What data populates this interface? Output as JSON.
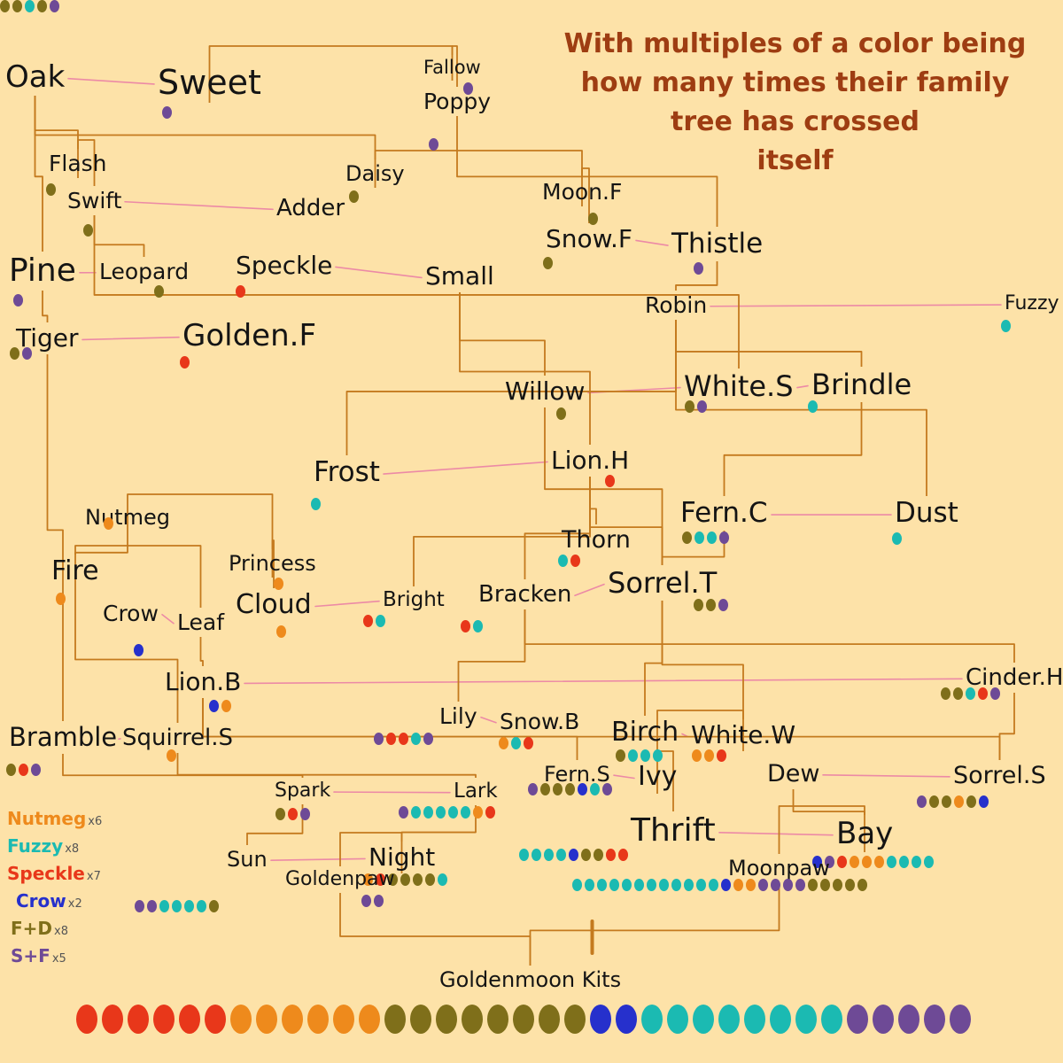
{
  "title": [
    "With multiples of a color being",
    "how many times their family",
    "tree has crossed",
    "itself"
  ],
  "colors": {
    "nutmeg": "#ee8a1c",
    "fuzzy": "#1bbab2",
    "speckle": "#e8371a",
    "crow": "#2630cc",
    "fd": "#7f6f1a",
    "sf": "#6e4a96",
    "name": "#141414",
    "tree_line": "#c47a1e",
    "mate_line": "#ec8aa6",
    "title": "#9e3d12",
    "background": "#fde2a8"
  },
  "legend": [
    {
      "name": "Nutmeg",
      "mult": "x6",
      "color": "nutmeg"
    },
    {
      "name": "Fuzzy",
      "mult": "x8",
      "color": "fuzzy"
    },
    {
      "name": "Speckle",
      "mult": "x7",
      "color": "speckle"
    },
    {
      "name": "Crow",
      "mult": "x2",
      "color": "crow"
    },
    {
      "name": "F+D",
      "mult": "x8",
      "color": "fd"
    },
    {
      "name": "S+F",
      "mult": "x5",
      "color": "sf"
    }
  ],
  "cats": [
    {
      "id": "oak",
      "name": "Oak",
      "dots": []
    },
    {
      "id": "sweet",
      "name": "Sweet",
      "dots": [
        "sf"
      ]
    },
    {
      "id": "fallow",
      "name": "Fallow",
      "dots": [
        "sf"
      ]
    },
    {
      "id": "poppy",
      "name": "Poppy",
      "dots": [
        "sf"
      ]
    },
    {
      "id": "flash",
      "name": "Flash",
      "dots": [
        "fd"
      ]
    },
    {
      "id": "daisy",
      "name": "Daisy",
      "dots": [
        "fd"
      ]
    },
    {
      "id": "swift",
      "name": "Swift",
      "dots": [
        "fd"
      ]
    },
    {
      "id": "adder",
      "name": "Adder",
      "dots": []
    },
    {
      "id": "moonf",
      "name": "Moon.F",
      "dots": [
        "fd"
      ]
    },
    {
      "id": "snowf",
      "name": "Snow.F",
      "dots": [
        "fd"
      ]
    },
    {
      "id": "thistle",
      "name": "Thistle",
      "dots": [
        "sf"
      ]
    },
    {
      "id": "pine",
      "name": "Pine",
      "dots": [
        "sf"
      ]
    },
    {
      "id": "leopard",
      "name": "Leopard",
      "dots": [
        "fd"
      ]
    },
    {
      "id": "speckle",
      "name": "Speckle",
      "dots": [
        "speckle"
      ]
    },
    {
      "id": "small",
      "name": "Small",
      "dots": []
    },
    {
      "id": "robin",
      "name": "Robin",
      "dots": []
    },
    {
      "id": "fuzzy",
      "name": "Fuzzy",
      "dots": [
        "fuzzy"
      ]
    },
    {
      "id": "tiger",
      "name": "Tiger",
      "dots": [
        "fd",
        "sf"
      ]
    },
    {
      "id": "goldenf",
      "name": "Golden.F",
      "dots": [
        "speckle"
      ]
    },
    {
      "id": "willow",
      "name": "Willow",
      "dots": [
        "fd"
      ]
    },
    {
      "id": "whites",
      "name": "White.S",
      "dots": [
        "fd",
        "sf"
      ]
    },
    {
      "id": "brindle",
      "name": "Brindle",
      "dots": [
        "fuzzy"
      ]
    },
    {
      "id": "frost",
      "name": "Frost",
      "dots": [
        "fuzzy"
      ]
    },
    {
      "id": "lionh",
      "name": "Lion.H",
      "dots": [
        "speckle"
      ]
    },
    {
      "id": "nutmeg",
      "name": "Nutmeg",
      "dots": [
        "nutmeg"
      ]
    },
    {
      "id": "fernc",
      "name": "Fern.C",
      "dots": [
        "fd",
        "fuzzy",
        "fuzzy",
        "sf"
      ]
    },
    {
      "id": "dust",
      "name": "Dust",
      "dots": [
        "fuzzy"
      ]
    },
    {
      "id": "thorn",
      "name": "Thorn",
      "dots": [
        "fuzzy",
        "speckle"
      ]
    },
    {
      "id": "fire",
      "name": "Fire",
      "dots": [
        "nutmeg"
      ]
    },
    {
      "id": "princess",
      "name": "Princess",
      "dots": [
        "nutmeg"
      ]
    },
    {
      "id": "cloud",
      "name": "Cloud",
      "dots": [
        "nutmeg"
      ]
    },
    {
      "id": "bright",
      "name": "Bright",
      "dots": [
        "speckle",
        "fuzzy"
      ]
    },
    {
      "id": "bracken",
      "name": "Bracken",
      "dots": [
        "speckle",
        "fuzzy"
      ]
    },
    {
      "id": "sorrelt",
      "name": "Sorrel.T",
      "dots": [
        "fd",
        "fd",
        "sf"
      ]
    },
    {
      "id": "crow",
      "name": "Crow",
      "dots": [
        "crow"
      ]
    },
    {
      "id": "leaf",
      "name": "Leaf",
      "dots": []
    },
    {
      "id": "lionb",
      "name": "Lion.B",
      "dots": [
        "crow",
        "nutmeg"
      ]
    },
    {
      "id": "cinderh",
      "name": "Cinder.H",
      "dots": [
        "fd",
        "fd",
        "fuzzy",
        "speckle",
        "sf"
      ]
    },
    {
      "id": "lily",
      "name": "Lily",
      "dots": [
        "sf",
        "speckle",
        "speckle",
        "fuzzy",
        "sf"
      ]
    },
    {
      "id": "snowb",
      "name": "Snow.B",
      "dots": [
        "nutmeg",
        "fuzzy",
        "speckle"
      ]
    },
    {
      "id": "birch",
      "name": "Birch",
      "dots": [
        "fd",
        "fuzzy",
        "fuzzy",
        "fuzzy"
      ]
    },
    {
      "id": "whitew",
      "name": "White.W",
      "dots": [
        "nutmeg",
        "nutmeg",
        "speckle"
      ]
    },
    {
      "id": "bramble",
      "name": "Bramble",
      "dots": [
        "fd",
        "speckle",
        "sf"
      ]
    },
    {
      "id": "squirrels",
      "name": "Squirrel.S",
      "dots": [
        "nutmeg"
      ]
    },
    {
      "id": "ferns",
      "name": "Fern.S",
      "dots": [
        "sf",
        "fd",
        "fd",
        "fd",
        "crow",
        "fuzzy",
        "sf"
      ]
    },
    {
      "id": "ivy",
      "name": "Ivy",
      "dots": [
        "fd",
        "fd",
        "fuzzy",
        "fd",
        "sf"
      ]
    },
    {
      "id": "dew",
      "name": "Dew",
      "dots": []
    },
    {
      "id": "sorrels",
      "name": "Sorrel.S",
      "dots": [
        "sf",
        "fd",
        "fd",
        "nutmeg",
        "fd",
        "crow"
      ]
    },
    {
      "id": "spark",
      "name": "Spark",
      "dots": [
        "fd",
        "speckle",
        "sf"
      ]
    },
    {
      "id": "lark",
      "name": "Lark",
      "dots": [
        "sf",
        "fuzzy",
        "fuzzy",
        "fuzzy",
        "fuzzy",
        "fuzzy",
        "nutmeg",
        "speckle"
      ]
    },
    {
      "id": "thrift",
      "name": "Thrift",
      "dots": [
        "fuzzy",
        "fuzzy",
        "fuzzy",
        "fuzzy",
        "crow",
        "fd",
        "fd",
        "speckle",
        "speckle"
      ]
    },
    {
      "id": "bay",
      "name": "Bay",
      "dots": [
        "crow",
        "sf",
        "speckle",
        "nutmeg",
        "nutmeg",
        "nutmeg",
        "fuzzy",
        "fuzzy",
        "fuzzy",
        "fuzzy"
      ]
    },
    {
      "id": "sun",
      "name": "Sun",
      "dots": []
    },
    {
      "id": "night",
      "name": "Night",
      "dots": [
        "nutmeg",
        "speckle",
        "fd",
        "fd",
        "fd",
        "fd",
        "fuzzy"
      ]
    },
    {
      "id": "goldenpaw",
      "name": "Goldenpaw",
      "dots": [
        "sf",
        "sf",
        "fuzzy",
        "fuzzy",
        "fuzzy",
        "fuzzy",
        "fd"
      ]
    },
    {
      "id": "goldenpaw2",
      "name": "",
      "dots": [
        "sf",
        "sf"
      ]
    },
    {
      "id": "moonpaw",
      "name": "Moonpaw",
      "dots": [
        "fuzzy",
        "fuzzy",
        "fuzzy",
        "fuzzy",
        "fuzzy",
        "fuzzy",
        "fuzzy",
        "fuzzy",
        "fuzzy",
        "fuzzy",
        "fuzzy",
        "fuzzy",
        "crow",
        "nutmeg",
        "nutmeg",
        "sf",
        "sf",
        "sf",
        "sf",
        "fd",
        "fd",
        "fd",
        "fd",
        "fd"
      ]
    },
    {
      "id": "kits",
      "name": "Goldenmoon Kits",
      "dots": [
        "speckle",
        "speckle",
        "speckle",
        "speckle",
        "speckle",
        "speckle",
        "nutmeg",
        "nutmeg",
        "nutmeg",
        "nutmeg",
        "nutmeg",
        "nutmeg",
        "fd",
        "fd",
        "fd",
        "fd",
        "fd",
        "fd",
        "fd",
        "fd",
        "crow",
        "crow",
        "fuzzy",
        "fuzzy",
        "fuzzy",
        "fuzzy",
        "fuzzy",
        "fuzzy",
        "fuzzy",
        "fuzzy",
        "sf",
        "sf",
        "sf",
        "sf",
        "sf"
      ]
    }
  ],
  "relations": {
    "mates": [
      [
        "oak",
        "sweet"
      ],
      [
        "swift",
        "adder"
      ],
      [
        "snowf",
        "thistle"
      ],
      [
        "pine",
        "leopard"
      ],
      [
        "speckle",
        "small"
      ],
      [
        "robin",
        "fuzzy"
      ],
      [
        "tiger",
        "goldenf"
      ],
      [
        "willow",
        "whites"
      ],
      [
        "whites",
        "brindle"
      ],
      [
        "frost",
        "lionh"
      ],
      [
        "fernc",
        "dust"
      ],
      [
        "cloud",
        "bright"
      ],
      [
        "bracken",
        "sorrelt"
      ],
      [
        "crow",
        "leaf"
      ],
      [
        "lionb",
        "cinderh"
      ],
      [
        "lily",
        "snowb"
      ],
      [
        "birch",
        "whitew"
      ],
      [
        "bramble",
        "squirrels"
      ],
      [
        "ferns",
        "ivy"
      ],
      [
        "dew",
        "sorrels"
      ],
      [
        "spark",
        "lark"
      ],
      [
        "thrift",
        "bay"
      ],
      [
        "sun",
        "night"
      ]
    ],
    "parent_child": [
      [
        "sweet",
        "fallow"
      ],
      [
        "fallow",
        "poppy"
      ],
      [
        "oak",
        "pine"
      ],
      [
        "oak",
        "flash"
      ],
      [
        "oak",
        "daisy"
      ],
      [
        "flash",
        "swift"
      ],
      [
        "daisy",
        "moonf"
      ],
      [
        "poppy",
        "thistle"
      ],
      [
        "moonf",
        "snowf"
      ],
      [
        "swift",
        "leopard"
      ],
      [
        "swift",
        "whites"
      ],
      [
        "pine",
        "tiger"
      ],
      [
        "tiger",
        "bramble"
      ],
      [
        "small",
        "lionh"
      ],
      [
        "small",
        "willow"
      ],
      [
        "thistle",
        "robin"
      ],
      [
        "robin",
        "frost"
      ],
      [
        "robin",
        "dust"
      ],
      [
        "robin",
        "brindle"
      ],
      [
        "brindle",
        "fernc"
      ],
      [
        "lionh",
        "thorn"
      ],
      [
        "lionh",
        "sorrelt"
      ],
      [
        "lionh",
        "bracken"
      ],
      [
        "lionh",
        "bright"
      ],
      [
        "willow",
        "sorrelt"
      ],
      [
        "nutmeg",
        "fire"
      ],
      [
        "nutmeg",
        "princess"
      ],
      [
        "princess",
        "cloud"
      ],
      [
        "fire",
        "leaf"
      ],
      [
        "fire",
        "squirrels"
      ],
      [
        "leaf",
        "lionb"
      ],
      [
        "bracken",
        "lily"
      ],
      [
        "bracken",
        "cinderh"
      ],
      [
        "sorrelt",
        "birch"
      ],
      [
        "sorrelt",
        "whitew"
      ],
      [
        "fernc",
        "sorrelt"
      ],
      [
        "lionb",
        "ferns"
      ],
      [
        "lionb",
        "sorrels"
      ],
      [
        "bramble",
        "spark"
      ],
      [
        "squirrels",
        "lark"
      ],
      [
        "whitew",
        "ivy"
      ],
      [
        "cinderh",
        "sorrels"
      ],
      [
        "spark",
        "sun"
      ],
      [
        "lark",
        "night"
      ],
      [
        "ivy",
        "thrift"
      ],
      [
        "dew",
        "bay"
      ],
      [
        "night",
        "goldenpaw"
      ],
      [
        "bay",
        "moonpaw"
      ],
      [
        "goldenpaw",
        "kits"
      ],
      [
        "moonpaw",
        "kits"
      ]
    ]
  }
}
